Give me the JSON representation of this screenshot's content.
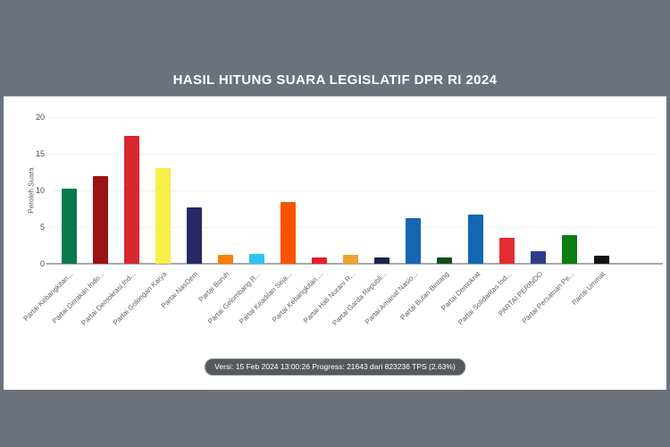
{
  "header": {
    "title": "HASIL HITUNG SUARA LEGISLATIF DPR RI 2024"
  },
  "status_badge": {
    "text": "Versi: 15 Feb 2024 13:00:26 Progress: 21643 dari 823236 TPS (2.63%)"
  },
  "colors": {
    "page_background": "#6b727d",
    "panel_background": "#ffffff",
    "title_text": "#ffffff",
    "badge_background": "#55595f",
    "badge_text": "#ffffff",
    "gridline": "#f0f0f0",
    "axis_line": "#a8a8a8",
    "tick_text": "#4a4a4a",
    "label_text": "#5f6368"
  },
  "chart_data": {
    "type": "bar",
    "title": "HASIL HITUNG SUARA LEGISLATIF DPR RI 2024",
    "xlabel": "",
    "ylabel": "Peroleh Suara",
    "ylim": [
      0,
      20
    ],
    "yticks": [
      0,
      5,
      10,
      15,
      20
    ],
    "grid": true,
    "legend": false,
    "categories": [
      "Partai Kebangkitan...",
      "Partai Gerakan Indo...",
      "Partai Demokrasi Ind...",
      "Partai Golongan Karya",
      "Partai NasDem",
      "Partai Buruh",
      "Partai Gelombang R...",
      "Partai Keadilan Seja...",
      "Partai Kebangkitan ...",
      "Partai Hati Nurani R...",
      "Partai Garda Republi...",
      "Partai Amanat Nasio...",
      "Partai Bulan Bintang",
      "Partai Demokrat",
      "Partai Solidaritas Ind...",
      "PARTAI PERINDO",
      "Partai Persatuan Pe...",
      "Partai Ummat"
    ],
    "values": [
      10.3,
      12.0,
      17.5,
      13.0,
      7.7,
      1.2,
      1.4,
      8.4,
      0.8,
      1.2,
      0.8,
      6.2,
      0.9,
      6.7,
      3.5,
      1.7,
      3.9,
      1.1
    ],
    "bar_colors": [
      "#0b7a4b",
      "#9b1212",
      "#d7282e",
      "#f7ee49",
      "#272a67",
      "#fc7f00",
      "#2cc3f3",
      "#f95300",
      "#e61e2b",
      "#eea32d",
      "#162450",
      "#1566b3",
      "#114f1e",
      "#1566b3",
      "#e42d33",
      "#2e3b8e",
      "#0b7d14",
      "#121212"
    ]
  }
}
